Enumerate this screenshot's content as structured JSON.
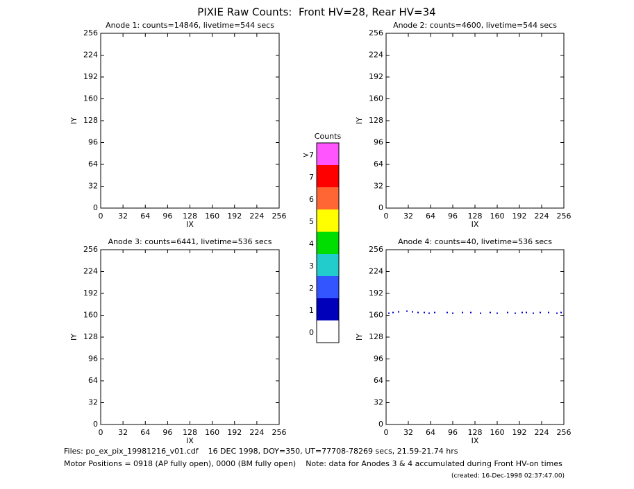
{
  "title": "PIXIE Raw Counts:  Front HV=28, Rear HV=34",
  "chart_data": [
    {
      "type": "scatter",
      "title": "Anode 1: counts=14846, livetime=544 secs",
      "xlabel": "IX",
      "ylabel": "IY",
      "xlim": [
        0,
        256
      ],
      "ylim": [
        0,
        256
      ],
      "xticks": [
        0,
        32,
        64,
        96,
        128,
        160,
        192,
        224,
        256
      ],
      "yticks": [
        0,
        32,
        64,
        96,
        128,
        160,
        192,
        224,
        256
      ],
      "color": "#0000cc"
    },
    {
      "type": "scatter",
      "title": "Anode 2: counts=4600, livetime=544 secs",
      "xlabel": "IX",
      "ylabel": "IY",
      "xlim": [
        0,
        256
      ],
      "ylim": [
        0,
        256
      ],
      "xticks": [
        0,
        32,
        64,
        96,
        128,
        160,
        192,
        224,
        256
      ],
      "yticks": [
        0,
        32,
        64,
        96,
        128,
        160,
        192,
        224,
        256
      ],
      "color": "#0000cc"
    },
    {
      "type": "scatter",
      "title": "Anode 3: counts=6441, livetime=536 secs",
      "xlabel": "IX",
      "ylabel": "IY",
      "xlim": [
        0,
        256
      ],
      "ylim": [
        0,
        256
      ],
      "xticks": [
        0,
        32,
        64,
        96,
        128,
        160,
        192,
        224,
        256
      ],
      "yticks": [
        0,
        32,
        64,
        96,
        128,
        160,
        192,
        224,
        256
      ],
      "color": "#ff55ff"
    },
    {
      "type": "scatter",
      "title": "Anode 4: counts=40, livetime=536 secs",
      "xlabel": "IX",
      "ylabel": "IY",
      "xlim": [
        0,
        256
      ],
      "ylim": [
        0,
        256
      ],
      "xticks": [
        0,
        32,
        64,
        96,
        128,
        160,
        192,
        224,
        256
      ],
      "yticks": [
        0,
        32,
        64,
        96,
        128,
        160,
        192,
        224,
        256
      ],
      "color": "#0000cc",
      "x": [
        4,
        10,
        18,
        30,
        38,
        46,
        55,
        62,
        70,
        88,
        96,
        110,
        122,
        136,
        150,
        160,
        175,
        186,
        196,
        202,
        212,
        222,
        234,
        246,
        252
      ],
      "y": [
        163,
        164,
        165,
        166,
        165,
        164,
        164,
        163,
        164,
        164,
        163,
        164,
        164,
        163,
        164,
        163,
        164,
        163,
        164,
        164,
        163,
        164,
        164,
        163,
        164
      ]
    },
    {
      "type": "colorbar",
      "title": "Counts",
      "categories": [
        "0",
        "1",
        "2",
        "3",
        "4",
        "5",
        "6",
        "7",
        ">7"
      ],
      "colors": [
        "#ffffff",
        "#0000bb",
        "#3355ff",
        "#22cccc",
        "#00dd00",
        "#ffff00",
        "#ff6633",
        "#ff0000",
        "#ff55ff"
      ]
    }
  ],
  "footer": [
    "Files: po_ex_pix_19981216_v01.cdf    16 DEC 1998, DOY=350, UT=77708-78269 secs, 21.59-21.74 hrs",
    "Motor Positions = 0918 (AP fully open), 0000 (BM fully open)    Note: data for Anodes 3 & 4 accumulated during Front HV-on times",
    "(created: 16-Dec-1998 02:37:47.00)"
  ]
}
